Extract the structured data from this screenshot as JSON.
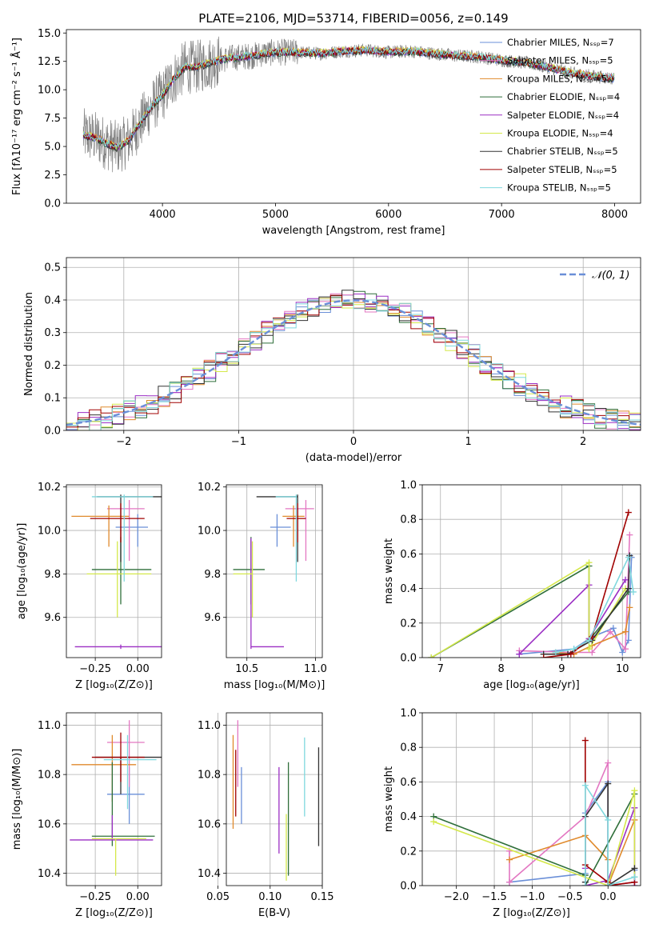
{
  "chart_data": [
    {
      "type": "line",
      "title": "PLATE=2106, MJD=53714, FIBERID=0056, z=0.149",
      "xlabel": "wavelength [Angstrom, rest frame]",
      "ylabel": "Flux [fλ10⁻¹⁷ erg cm⁻² s⁻¹ Å⁻¹]",
      "xlim": [
        3150,
        8230
      ],
      "ylim": [
        0,
        15.3
      ],
      "xticks": [
        "4000",
        "5000",
        "6000",
        "7000",
        "8000"
      ],
      "yticks": [
        "0.0",
        "2.5",
        "5.0",
        "7.5",
        "10.0",
        "12.5",
        "15.0"
      ],
      "grid": false,
      "legend": "top-right",
      "spectrum": {
        "name": "data",
        "color": "#808080",
        "x": [
          3300,
          3400,
          3500,
          3600,
          3700,
          3800,
          3900,
          4000,
          4100,
          4200,
          4300,
          4400,
          4500,
          4600,
          4700,
          4800,
          4900,
          5000,
          5200,
          5400,
          5600,
          5800,
          6000,
          6200,
          6400,
          6600,
          6800,
          7000,
          7200,
          7400,
          7600,
          7800,
          8000
        ],
        "y": [
          6.0,
          5.8,
          5.3,
          4.9,
          5.5,
          7.0,
          8.5,
          9.5,
          11.0,
          12.0,
          12.0,
          12.3,
          12.6,
          12.8,
          12.9,
          13.0,
          13.2,
          13.3,
          13.3,
          13.2,
          13.4,
          13.5,
          13.3,
          13.4,
          13.2,
          13.0,
          12.9,
          12.6,
          12.4,
          12.0,
          11.5,
          11.2,
          11.0
        ]
      },
      "series": [
        {
          "name": "Chabrier MILES, N_SSP=7",
          "color": "#6a8fd8"
        },
        {
          "name": "Salpeter MILES, N_SSP=5",
          "color": "#e377c2"
        },
        {
          "name": "Kroupa MILES, N_SSP=5",
          "color": "#e08a2c"
        },
        {
          "name": "Chabrier ELODIE, N_SSP=4",
          "color": "#2f6f3a"
        },
        {
          "name": "Salpeter ELODIE, N_SSP=4",
          "color": "#9b2fc4"
        },
        {
          "name": "Kroupa ELODIE, N_SSP=4",
          "color": "#d4e84a"
        },
        {
          "name": "Chabrier STELIB, N_SSP=5",
          "color": "#333333"
        },
        {
          "name": "Salpeter STELIB, N_SSP=5",
          "color": "#a00000"
        },
        {
          "name": "Kroupa STELIB, N_SSP=5",
          "color": "#7fd8de"
        }
      ]
    },
    {
      "type": "histogram",
      "xlabel": "(data-model)/error",
      "ylabel": "Normed distribution",
      "xlim": [
        -2.5,
        2.5
      ],
      "ylim": [
        0,
        0.53
      ],
      "xticks": [
        "−2",
        "−1",
        "0",
        "1",
        "2"
      ],
      "yticks": [
        "0.0",
        "0.1",
        "0.2",
        "0.3",
        "0.4",
        "0.5"
      ],
      "grid": true,
      "legend": "top-right",
      "bin_width": 0.1,
      "normal_label": "𝒩(0, 1)",
      "normal_color": "#6a8fd8"
    },
    {
      "type": "errorbar",
      "xlabel": "Z [log₁₀(Z/Z⊙)]",
      "ylabel": "age  [log₁₀(age/yr)]",
      "xlim": [
        -0.42,
        0.14
      ],
      "ylim": [
        9.415,
        10.21
      ],
      "xticks": [
        "−0.25",
        "0.00"
      ],
      "yticks": [
        "9.6",
        "9.8",
        "10.0",
        "10.2"
      ],
      "grid": true,
      "points": [
        {
          "x": 0.0,
          "xerr": [
            0.13,
            0.06
          ],
          "y": 10.015,
          "yerr": [
            0.09,
            0.06
          ],
          "color": "#6a8fd8"
        },
        {
          "x": -0.05,
          "xerr": [
            0.13,
            0.09
          ],
          "y": 10.1,
          "yerr": [
            0.24,
            0.04
          ],
          "color": "#e377c2"
        },
        {
          "x": -0.17,
          "xerr": [
            0.22,
            0.12
          ],
          "y": 10.065,
          "yerr": [
            0.14,
            0.05
          ],
          "color": "#e08a2c"
        },
        {
          "x": -0.1,
          "xerr": [
            0.17,
            0.18
          ],
          "y": 9.82,
          "yerr": [
            0.16,
            0.15
          ],
          "color": "#2f6f3a"
        },
        {
          "x": -0.1,
          "xerr": [
            0.27,
            0.25
          ],
          "y": 9.465,
          "yerr": [
            0.01,
            0.01
          ],
          "color": "#9b2fc4"
        },
        {
          "x": -0.12,
          "xerr": [
            0.18,
            0.2
          ],
          "y": 9.8,
          "yerr": [
            0.2,
            0.15
          ],
          "color": "#d4e84a"
        },
        {
          "x": -0.1,
          "xerr": [
            0.14,
            0.25
          ],
          "y": 10.155,
          "yerr": [
            0.3,
            0.01
          ],
          "color": "#333333"
        },
        {
          "x": -0.1,
          "xerr": [
            0.18,
            0.14
          ],
          "y": 10.055,
          "yerr": [
            0.11,
            0.07
          ],
          "color": "#a00000"
        },
        {
          "x": -0.08,
          "xerr": [
            0.19,
            0.17
          ],
          "y": 10.155,
          "yerr": [
            0.39,
            0.01
          ],
          "color": "#7fd8de"
        }
      ]
    },
    {
      "type": "errorbar",
      "xlabel": "mass [log₁₀(M/M⊙)]",
      "ylabel": "",
      "xlim": [
        10.35,
        11.05
      ],
      "ylim": [
        9.415,
        10.21
      ],
      "xticks": [
        "10.5",
        "11.0"
      ],
      "yticks": [
        "9.6",
        "9.8",
        "10.0",
        "10.2"
      ],
      "grid": true,
      "points": [
        {
          "x": 10.72,
          "xerr": [
            0.05,
            0.1
          ],
          "y": 10.015,
          "yerr": [
            0.09,
            0.06
          ],
          "color": "#6a8fd8"
        },
        {
          "x": 10.93,
          "xerr": [
            0.15,
            0.06
          ],
          "y": 10.1,
          "yerr": [
            0.24,
            0.04
          ],
          "color": "#e377c2"
        },
        {
          "x": 10.84,
          "xerr": [
            0.08,
            0.08
          ],
          "y": 10.065,
          "yerr": [
            0.14,
            0.05
          ],
          "color": "#e08a2c"
        },
        {
          "x": 10.53,
          "xerr": [
            0.13,
            0.1
          ],
          "y": 9.82,
          "yerr": [
            0.16,
            0.15
          ],
          "color": "#2f6f3a"
        },
        {
          "x": 10.53,
          "xerr": [
            0.0,
            0.24
          ],
          "y": 9.465,
          "yerr": [
            0.01,
            0.5
          ],
          "color": "#9b2fc4"
        },
        {
          "x": 10.54,
          "xerr": [
            0.14,
            0.0
          ],
          "y": 9.8,
          "yerr": [
            0.2,
            0.15
          ],
          "color": "#d4e84a"
        },
        {
          "x": 10.87,
          "xerr": [
            0.3,
            0.0
          ],
          "y": 10.155,
          "yerr": [
            0.3,
            0.01
          ],
          "color": "#333333"
        },
        {
          "x": 10.87,
          "xerr": [
            0.08,
            0.06
          ],
          "y": 10.055,
          "yerr": [
            0.11,
            0.07
          ],
          "color": "#a00000"
        },
        {
          "x": 10.86,
          "xerr": [
            0.15,
            0.0
          ],
          "y": 10.155,
          "yerr": [
            0.39,
            0.01
          ],
          "color": "#7fd8de"
        }
      ]
    },
    {
      "type": "line",
      "xlabel": "age  [log₁₀(age/yr)]",
      "ylabel": "mass weight",
      "xlim": [
        6.7,
        10.3
      ],
      "ylim": [
        0,
        1.0
      ],
      "xticks": [
        "7",
        "8",
        "9",
        "10"
      ],
      "yticks": [
        "0.0",
        "0.2",
        "0.4",
        "0.6",
        "0.8",
        "1.0"
      ],
      "grid": true,
      "series": [
        {
          "name": "Chabrier MILES",
          "color": "#6a8fd8",
          "x": [
            8.3,
            9.2,
            9.5,
            9.85,
            10.0,
            10.1,
            10.15
          ],
          "y": [
            0.02,
            0.05,
            0.12,
            0.17,
            0.03,
            0.1,
            0.58
          ]
        },
        {
          "name": "Salpeter MILES",
          "color": "#e377c2",
          "x": [
            8.3,
            9.2,
            9.5,
            9.8,
            10.05,
            10.12
          ],
          "y": [
            0.04,
            0.03,
            0.03,
            0.15,
            0.05,
            0.71
          ]
        },
        {
          "name": "Kroupa MILES",
          "color": "#e08a2c",
          "x": [
            8.9,
            9.2,
            9.5,
            10.05,
            10.12
          ],
          "y": [
            0.03,
            0.02,
            0.07,
            0.15,
            0.29
          ]
        },
        {
          "name": "Chabrier ELODIE",
          "color": "#2f6f3a",
          "x": [
            6.85,
            9.45,
            9.45,
            10.1
          ],
          "y": [
            0.0,
            0.53,
            0.1,
            0.38
          ]
        },
        {
          "name": "Salpeter ELODIE",
          "color": "#9b2fc4",
          "x": [
            8.3,
            9.45,
            9.45,
            10.05
          ],
          "y": [
            0.02,
            0.42,
            0.11,
            0.45
          ]
        },
        {
          "name": "Kroupa ELODIE",
          "color": "#d4e84a",
          "x": [
            6.85,
            9.45,
            9.45,
            10.05
          ],
          "y": [
            0.0,
            0.55,
            0.05,
            0.4
          ]
        },
        {
          "name": "Chabrier STELIB",
          "color": "#333333",
          "x": [
            8.7,
            9.1,
            9.5,
            10.1,
            10.12
          ],
          "y": [
            0.02,
            0.02,
            0.1,
            0.4,
            0.59
          ]
        },
        {
          "name": "Salpeter STELIB",
          "color": "#a00000",
          "x": [
            8.7,
            9.15,
            9.5,
            10.1
          ],
          "y": [
            0.0,
            0.02,
            0.12,
            0.84
          ]
        },
        {
          "name": "Kroupa STELIB",
          "color": "#7fd8de",
          "x": [
            8.9,
            9.2,
            9.45,
            10.1,
            10.18
          ],
          "y": [
            0.03,
            0.05,
            0.1,
            0.58,
            0.38
          ]
        }
      ]
    },
    {
      "type": "errorbar",
      "xlabel": "Z [log₁₀(Z/Z⊙)]",
      "ylabel": "mass [log₁₀(M/M⊙)]",
      "xlim": [
        -0.42,
        0.14
      ],
      "ylim": [
        10.35,
        11.05
      ],
      "xticks": [
        "−0.25",
        "0.00"
      ],
      "yticks": [
        "10.4",
        "10.6",
        "10.8",
        "11.0"
      ],
      "grid": true,
      "points": [
        {
          "x": -0.05,
          "xerr": [
            0.13,
            0.09
          ],
          "y": 10.72,
          "yerr": [
            0.12,
            0.11
          ],
          "color": "#6a8fd8"
        },
        {
          "x": -0.05,
          "xerr": [
            0.13,
            0.09
          ],
          "y": 10.93,
          "yerr": [
            0.18,
            0.09
          ],
          "color": "#e377c2"
        },
        {
          "x": -0.15,
          "xerr": [
            0.24,
            0.14
          ],
          "y": 10.84,
          "yerr": [
            0.15,
            0.12
          ],
          "color": "#e08a2c"
        },
        {
          "x": -0.15,
          "xerr": [
            0.12,
            0.25
          ],
          "y": 10.55,
          "yerr": [
            0.04,
            0.3
          ],
          "color": "#2f6f3a"
        },
        {
          "x": -0.15,
          "xerr": [
            0.25,
            0.24
          ],
          "y": 10.535,
          "yerr": [
            0.0,
            0.1
          ],
          "color": "#9b2fc4"
        },
        {
          "x": -0.13,
          "xerr": [
            0.14,
            0.18
          ],
          "y": 10.54,
          "yerr": [
            0.15,
            0.0
          ],
          "color": "#d4e84a"
        },
        {
          "x": -0.1,
          "xerr": [
            0.15,
            0.25
          ],
          "y": 10.87,
          "yerr": [
            0.15,
            0.0
          ],
          "color": "#333333"
        },
        {
          "x": -0.1,
          "xerr": [
            0.17,
            0.14
          ],
          "y": 10.87,
          "yerr": [
            0.1,
            0.1
          ],
          "color": "#a00000"
        },
        {
          "x": -0.06,
          "xerr": [
            0.14,
            0.17
          ],
          "y": 10.86,
          "yerr": [
            0.2,
            0.1
          ],
          "color": "#7fd8de"
        }
      ]
    },
    {
      "type": "errorbar",
      "xlabel": "E(B-V)",
      "ylabel": "",
      "xlim": [
        0.058,
        0.15
      ],
      "ylim": [
        10.35,
        11.05
      ],
      "xticks": [
        "0.05",
        "0.10",
        "0.15"
      ],
      "yticks": [
        "10.4",
        "10.6",
        "10.8",
        "11.0"
      ],
      "grid": true,
      "points": [
        {
          "x": 0.0725,
          "y": 10.72,
          "yerr": [
            0.12,
            0.11
          ],
          "color": "#6a8fd8"
        },
        {
          "x": 0.069,
          "y": 10.93,
          "yerr": [
            0.18,
            0.09
          ],
          "color": "#e377c2"
        },
        {
          "x": 0.0645,
          "y": 10.84,
          "yerr": [
            0.26,
            0.12
          ],
          "color": "#e08a2c"
        },
        {
          "x": 0.1175,
          "y": 10.55,
          "yerr": [
            0.16,
            0.3
          ],
          "color": "#2f6f3a"
        },
        {
          "x": 0.1085,
          "y": 10.66,
          "yerr": [
            0.18,
            0.17
          ],
          "color": "#9b2fc4"
        },
        {
          "x": 0.1155,
          "y": 10.5,
          "yerr": [
            0.13,
            0.14
          ],
          "color": "#d4e84a"
        },
        {
          "x": 0.1465,
          "y": 10.71,
          "yerr": [
            0.2,
            0.2
          ],
          "color": "#333333"
        },
        {
          "x": 0.067,
          "y": 10.78,
          "yerr": [
            0.15,
            0.12
          ],
          "color": "#a00000"
        },
        {
          "x": 0.133,
          "y": 10.79,
          "yerr": [
            0.16,
            0.16
          ],
          "color": "#7fd8de"
        }
      ]
    },
    {
      "type": "line",
      "xlabel": "Z [log₁₀(Z/Z⊙)]",
      "ylabel": "mass weight",
      "xlim": [
        -2.45,
        0.43
      ],
      "ylim": [
        0,
        1.0
      ],
      "xticks": [
        "−2.0",
        "−1.5",
        "−1.0",
        "−0.5",
        "0.0"
      ],
      "yticks": [
        "0.0",
        "0.2",
        "0.4",
        "0.6",
        "0.8",
        "1.0"
      ],
      "grid": true,
      "series": [
        {
          "name": "Chabrier MILES",
          "color": "#6a8fd8",
          "x": [
            -1.3,
            -0.3,
            -0.3,
            0.0,
            0.0,
            0.35,
            0.35
          ],
          "y": [
            0.02,
            0.07,
            0.42,
            0.6,
            0.0,
            0.02,
            0.09
          ]
        },
        {
          "name": "Salpeter MILES",
          "color": "#e377c2",
          "x": [
            -1.3,
            -1.3,
            -0.3,
            0.0,
            0.0,
            0.35
          ],
          "y": [
            0.2,
            0.02,
            0.4,
            0.71,
            0.0,
            0.02
          ]
        },
        {
          "name": "Kroupa MILES",
          "color": "#e08a2c",
          "x": [
            -1.3,
            -0.3,
            0.0,
            0.0,
            0.35
          ],
          "y": [
            0.15,
            0.29,
            0.15,
            0.0,
            0.38
          ]
        },
        {
          "name": "Chabrier ELODIE",
          "color": "#2f6f3a",
          "x": [
            -2.3,
            -0.3,
            -0.3,
            0.35
          ],
          "y": [
            0.4,
            0.06,
            0.0,
            0.53
          ]
        },
        {
          "name": "Salpeter ELODIE",
          "color": "#9b2fc4",
          "x": [
            -0.3,
            -0.3,
            0.0,
            0.35,
            0.35
          ],
          "y": [
            0.1,
            0.0,
            0.03,
            0.45,
            0.0
          ]
        },
        {
          "name": "Kroupa ELODIE",
          "color": "#d4e84a",
          "x": [
            -2.3,
            0.0,
            0.35,
            0.35
          ],
          "y": [
            0.37,
            0.0,
            0.55,
            0.05
          ]
        },
        {
          "name": "Chabrier STELIB",
          "color": "#333333",
          "x": [
            -0.3,
            -0.3,
            0.0,
            0.0,
            0.35
          ],
          "y": [
            0.02,
            0.4,
            0.59,
            0.0,
            0.1
          ]
        },
        {
          "name": "Salpeter STELIB",
          "color": "#a00000",
          "x": [
            -0.3,
            -0.3,
            0.0,
            0.0,
            0.35
          ],
          "y": [
            0.84,
            0.12,
            0.02,
            0.0,
            0.02
          ]
        },
        {
          "name": "Kroupa STELIB",
          "color": "#7fd8de",
          "x": [
            -0.3,
            -0.3,
            0.0,
            0.0,
            0.35
          ],
          "y": [
            0.0,
            0.58,
            0.38,
            0.0,
            0.05
          ]
        }
      ]
    }
  ]
}
